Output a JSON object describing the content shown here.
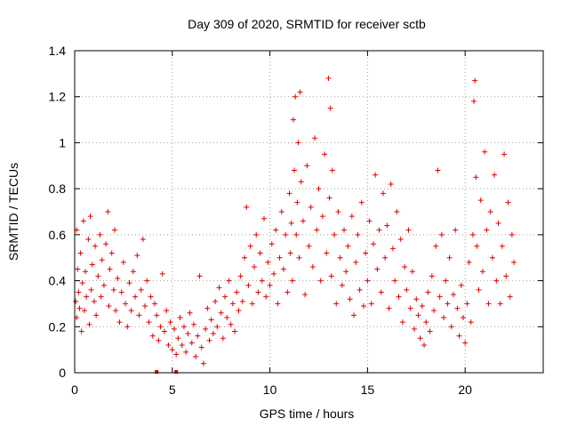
{
  "chart_data": {
    "type": "scatter",
    "title": "Day 309 of 2020, SRMTID for receiver sctb",
    "xlabel": "GPS time / hours",
    "ylabel": "SRMTID / TECUs",
    "xlim": [
      0,
      24
    ],
    "ylim": [
      0,
      1.4
    ],
    "xticks": [
      0,
      5,
      10,
      15,
      20
    ],
    "xtick_labels": [
      "0",
      "5",
      "10",
      "15",
      "20"
    ],
    "yticks": [
      0,
      0.2,
      0.4,
      0.6,
      0.8,
      1,
      1.2,
      1.4
    ],
    "ytick_labels": [
      "0",
      "0.2",
      "0.4",
      "0.6",
      "0.8",
      "1",
      "1.2",
      "1.4"
    ],
    "grid": true,
    "marker": "+",
    "color": "#e00000",
    "series": [
      {
        "name": "SRMTID",
        "points": [
          [
            0.05,
            0.31
          ],
          [
            0.1,
            0.62
          ],
          [
            0.1,
            0.24
          ],
          [
            0.15,
            0.45
          ],
          [
            0.2,
            0.35
          ],
          [
            0.25,
            0.28
          ],
          [
            0.3,
            0.52
          ],
          [
            0.35,
            0.18
          ],
          [
            0.4,
            0.39
          ],
          [
            0.45,
            0.66
          ],
          [
            0.5,
            0.27
          ],
          [
            0.55,
            0.44
          ],
          [
            0.6,
            0.33
          ],
          [
            0.7,
            0.58
          ],
          [
            0.75,
            0.21
          ],
          [
            0.8,
            0.68
          ],
          [
            0.85,
            0.36
          ],
          [
            0.9,
            0.47
          ],
          [
            1.0,
            0.31
          ],
          [
            1.05,
            0.55
          ],
          [
            1.1,
            0.25
          ],
          [
            1.2,
            0.42
          ],
          [
            1.3,
            0.6
          ],
          [
            1.35,
            0.33
          ],
          [
            1.4,
            0.49
          ],
          [
            1.5,
            0.38
          ],
          [
            1.6,
            0.56
          ],
          [
            1.7,
            0.7
          ],
          [
            1.75,
            0.29
          ],
          [
            1.8,
            0.45
          ],
          [
            1.9,
            0.52
          ],
          [
            2.0,
            0.36
          ],
          [
            2.05,
            0.62
          ],
          [
            2.1,
            0.27
          ],
          [
            2.2,
            0.41
          ],
          [
            2.3,
            0.22
          ],
          [
            2.4,
            0.35
          ],
          [
            2.5,
            0.48
          ],
          [
            2.6,
            0.3
          ],
          [
            2.7,
            0.2
          ],
          [
            2.8,
            0.39
          ],
          [
            2.9,
            0.27
          ],
          [
            3.0,
            0.44
          ],
          [
            3.1,
            0.33
          ],
          [
            3.2,
            0.51
          ],
          [
            3.3,
            0.25
          ],
          [
            3.4,
            0.36
          ],
          [
            3.5,
            0.58
          ],
          [
            3.6,
            0.29
          ],
          [
            3.7,
            0.4
          ],
          [
            3.8,
            0.22
          ],
          [
            3.9,
            0.33
          ],
          [
            4.0,
            0.16
          ],
          [
            4.1,
            0.3
          ],
          [
            4.2,
            0.25
          ],
          [
            4.3,
            0.14
          ],
          [
            4.4,
            0.2
          ],
          [
            4.5,
            0.43
          ],
          [
            4.6,
            0.18
          ],
          [
            4.7,
            0.27
          ],
          [
            4.8,
            0.12
          ],
          [
            4.9,
            0.22
          ],
          [
            5.0,
            0.1
          ],
          [
            5.1,
            0.19
          ],
          [
            5.2,
            0.08
          ],
          [
            5.3,
            0.15
          ],
          [
            5.4,
            0.24
          ],
          [
            5.5,
            0.12
          ],
          [
            5.6,
            0.2
          ],
          [
            5.7,
            0.09
          ],
          [
            5.8,
            0.17
          ],
          [
            5.9,
            0.26
          ],
          [
            6.0,
            0.13
          ],
          [
            6.1,
            0.21
          ],
          [
            6.2,
            0.07
          ],
          [
            6.3,
            0.16
          ],
          [
            6.4,
            0.42
          ],
          [
            6.5,
            0.11
          ],
          [
            6.6,
            0.04
          ],
          [
            6.7,
            0.19
          ],
          [
            6.8,
            0.28
          ],
          [
            6.9,
            0.14
          ],
          [
            7.0,
            0.23
          ],
          [
            7.1,
            0.17
          ],
          [
            7.2,
            0.31
          ],
          [
            7.3,
            0.2
          ],
          [
            7.4,
            0.37
          ],
          [
            7.5,
            0.26
          ],
          [
            7.6,
            0.15
          ],
          [
            7.7,
            0.33
          ],
          [
            7.8,
            0.24
          ],
          [
            7.9,
            0.4
          ],
          [
            8.0,
            0.21
          ],
          [
            8.1,
            0.3
          ],
          [
            8.2,
            0.18
          ],
          [
            8.3,
            0.35
          ],
          [
            8.4,
            0.27
          ],
          [
            8.5,
            0.42
          ],
          [
            8.6,
            0.31
          ],
          [
            8.7,
            0.5
          ],
          [
            8.8,
            0.72
          ],
          [
            8.9,
            0.38
          ],
          [
            9.0,
            0.55
          ],
          [
            9.1,
            0.3
          ],
          [
            9.2,
            0.46
          ],
          [
            9.3,
            0.6
          ],
          [
            9.4,
            0.35
          ],
          [
            9.5,
            0.52
          ],
          [
            9.6,
            0.4
          ],
          [
            9.7,
            0.67
          ],
          [
            9.8,
            0.33
          ],
          [
            9.9,
            0.48
          ],
          [
            10.0,
            0.38
          ],
          [
            10.1,
            0.56
          ],
          [
            10.2,
            0.43
          ],
          [
            10.3,
            0.62
          ],
          [
            10.4,
            0.3
          ],
          [
            10.5,
            0.5
          ],
          [
            10.6,
            0.7
          ],
          [
            10.7,
            0.45
          ],
          [
            10.8,
            0.6
          ],
          [
            10.9,
            0.35
          ],
          [
            11.0,
            0.78
          ],
          [
            11.05,
            0.52
          ],
          [
            11.1,
            0.65
          ],
          [
            11.15,
            0.4
          ],
          [
            11.2,
            1.1
          ],
          [
            11.25,
            0.88
          ],
          [
            11.3,
            1.2
          ],
          [
            11.35,
            0.6
          ],
          [
            11.4,
            0.74
          ],
          [
            11.45,
            1.0
          ],
          [
            11.5,
            0.5
          ],
          [
            11.55,
            1.22
          ],
          [
            11.6,
            0.83
          ],
          [
            11.7,
            0.66
          ],
          [
            11.8,
            0.34
          ],
          [
            11.9,
            0.9
          ],
          [
            12.0,
            0.55
          ],
          [
            12.1,
            0.72
          ],
          [
            12.2,
            0.46
          ],
          [
            12.3,
            1.02
          ],
          [
            12.4,
            0.62
          ],
          [
            12.5,
            0.8
          ],
          [
            12.6,
            0.4
          ],
          [
            12.7,
            0.68
          ],
          [
            12.8,
            0.95
          ],
          [
            12.9,
            0.52
          ],
          [
            13.0,
            1.28
          ],
          [
            13.05,
            0.76
          ],
          [
            13.1,
            1.15
          ],
          [
            13.15,
            0.42
          ],
          [
            13.2,
            0.88
          ],
          [
            13.3,
            0.6
          ],
          [
            13.4,
            0.3
          ],
          [
            13.5,
            0.7
          ],
          [
            13.6,
            0.5
          ],
          [
            13.7,
            0.38
          ],
          [
            13.8,
            0.62
          ],
          [
            13.9,
            0.44
          ],
          [
            14.0,
            0.55
          ],
          [
            14.1,
            0.32
          ],
          [
            14.2,
            0.68
          ],
          [
            14.3,
            0.25
          ],
          [
            14.4,
            0.48
          ],
          [
            14.5,
            0.6
          ],
          [
            14.6,
            0.36
          ],
          [
            14.7,
            0.74
          ],
          [
            14.8,
            0.29
          ],
          [
            14.9,
            0.52
          ],
          [
            15.0,
            0.4
          ],
          [
            15.1,
            0.66
          ],
          [
            15.2,
            0.3
          ],
          [
            15.3,
            0.56
          ],
          [
            15.4,
            0.86
          ],
          [
            15.5,
            0.45
          ],
          [
            15.6,
            0.62
          ],
          [
            15.7,
            0.35
          ],
          [
            15.8,
            0.78
          ],
          [
            15.9,
            0.5
          ],
          [
            16.0,
            0.64
          ],
          [
            16.1,
            0.28
          ],
          [
            16.2,
            0.82
          ],
          [
            16.3,
            0.54
          ],
          [
            16.4,
            0.4
          ],
          [
            16.5,
            0.7
          ],
          [
            16.6,
            0.33
          ],
          [
            16.7,
            0.58
          ],
          [
            16.8,
            0.22
          ],
          [
            16.9,
            0.46
          ],
          [
            17.0,
            0.36
          ],
          [
            17.1,
            0.62
          ],
          [
            17.2,
            0.28
          ],
          [
            17.3,
            0.44
          ],
          [
            17.4,
            0.19
          ],
          [
            17.5,
            0.32
          ],
          [
            17.6,
            0.25
          ],
          [
            17.7,
            0.15
          ],
          [
            17.8,
            0.29
          ],
          [
            17.9,
            0.12
          ],
          [
            18.0,
            0.22
          ],
          [
            18.1,
            0.35
          ],
          [
            18.2,
            0.18
          ],
          [
            18.3,
            0.42
          ],
          [
            18.4,
            0.27
          ],
          [
            18.5,
            0.55
          ],
          [
            18.6,
            0.88
          ],
          [
            18.7,
            0.33
          ],
          [
            18.8,
            0.6
          ],
          [
            18.9,
            0.24
          ],
          [
            19.0,
            0.4
          ],
          [
            19.1,
            0.3
          ],
          [
            19.2,
            0.5
          ],
          [
            19.3,
            0.2
          ],
          [
            19.4,
            0.34
          ],
          [
            19.5,
            0.62
          ],
          [
            19.6,
            0.28
          ],
          [
            19.7,
            0.16
          ],
          [
            19.8,
            0.38
          ],
          [
            19.9,
            0.24
          ],
          [
            20.0,
            0.13
          ],
          [
            20.1,
            0.3
          ],
          [
            20.2,
            0.48
          ],
          [
            20.3,
            0.22
          ],
          [
            20.4,
            0.6
          ],
          [
            20.45,
            1.18
          ],
          [
            20.5,
            1.27
          ],
          [
            20.55,
            0.85
          ],
          [
            20.6,
            0.55
          ],
          [
            20.7,
            0.36
          ],
          [
            20.8,
            0.75
          ],
          [
            20.9,
            0.44
          ],
          [
            21.0,
            0.96
          ],
          [
            21.1,
            0.62
          ],
          [
            21.2,
            0.3
          ],
          [
            21.3,
            0.7
          ],
          [
            21.4,
            0.5
          ],
          [
            21.5,
            0.86
          ],
          [
            21.6,
            0.4
          ],
          [
            21.7,
            0.65
          ],
          [
            21.8,
            0.3
          ],
          [
            21.9,
            0.55
          ],
          [
            22.0,
            0.95
          ],
          [
            22.1,
            0.42
          ],
          [
            22.2,
            0.74
          ],
          [
            22.3,
            0.33
          ],
          [
            22.4,
            0.6
          ],
          [
            22.5,
            0.48
          ]
        ]
      }
    ],
    "gap_markers": [
      4.2,
      5.2
    ]
  }
}
